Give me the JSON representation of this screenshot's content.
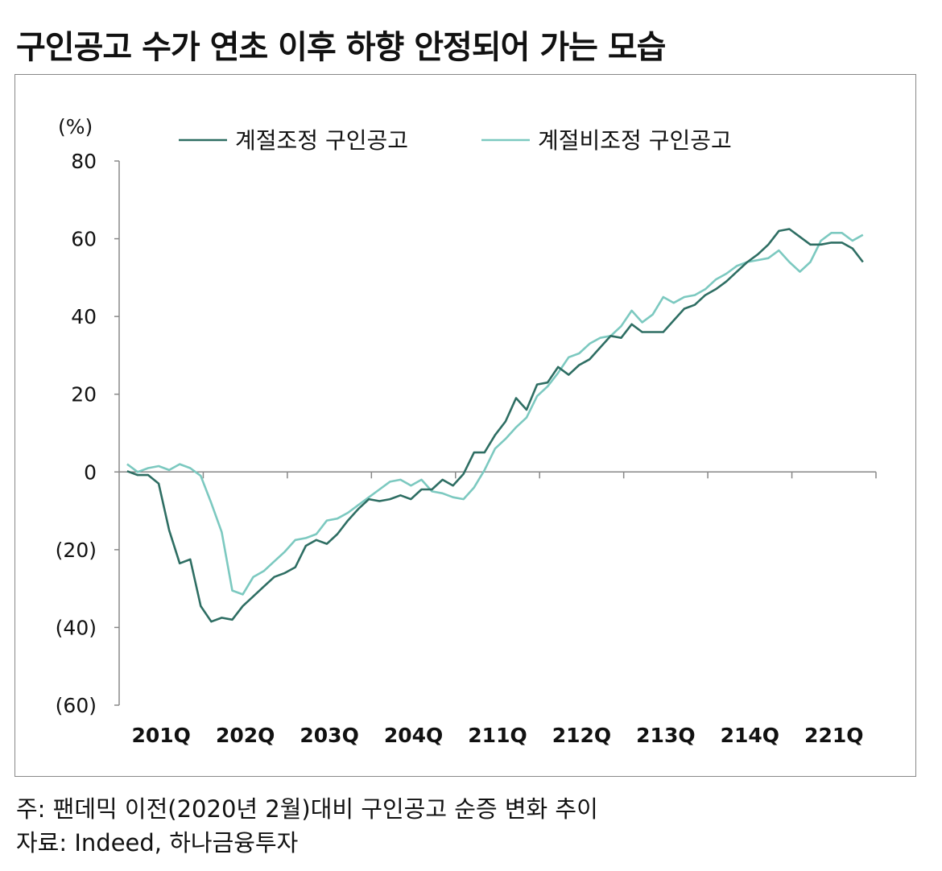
{
  "title": "구인공고 수가 연초 이후 하향 안정되어 가는 모습",
  "notes": {
    "note": "주: 팬데믹 이전(2020년 2월)대비 구인공고 순증 변화 추이",
    "source": "자료: Indeed, 하나금융투자"
  },
  "chart_data": {
    "type": "line",
    "unit_label": "(%)",
    "ylim": [
      -60,
      80
    ],
    "yticks": [
      -60,
      -40,
      -20,
      0,
      20,
      40,
      60,
      80
    ],
    "ytick_labels": [
      "(60)",
      "(40)",
      "(20)",
      "0",
      "20",
      "40",
      "60",
      "80"
    ],
    "x_range": [
      0,
      18
    ],
    "xticks": [
      {
        "x": 1,
        "label": "201Q"
      },
      {
        "x": 3,
        "label": "202Q"
      },
      {
        "x": 5,
        "label": "203Q"
      },
      {
        "x": 7,
        "label": "204Q"
      },
      {
        "x": 9,
        "label": "211Q"
      },
      {
        "x": 11,
        "label": "212Q"
      },
      {
        "x": 13,
        "label": "213Q"
      },
      {
        "x": 15,
        "label": "214Q"
      },
      {
        "x": 17,
        "label": "221Q"
      }
    ],
    "legend_position": "top",
    "series": [
      {
        "name": "계절조정 구인공고",
        "color": "#2e6e63",
        "points": [
          [
            0.19,
            0.2
          ],
          [
            0.44,
            -0.8
          ],
          [
            0.69,
            -0.8
          ],
          [
            0.94,
            -3
          ],
          [
            1.19,
            -15
          ],
          [
            1.44,
            -23.5
          ],
          [
            1.69,
            -22.5
          ],
          [
            1.94,
            -34.5
          ],
          [
            2.19,
            -38.5
          ],
          [
            2.44,
            -37.5
          ],
          [
            2.69,
            -38
          ],
          [
            2.94,
            -34.5
          ],
          [
            3.19,
            -32
          ],
          [
            3.44,
            -29.5
          ],
          [
            3.69,
            -27
          ],
          [
            3.94,
            -26
          ],
          [
            4.19,
            -24.5
          ],
          [
            4.44,
            -19
          ],
          [
            4.69,
            -17.5
          ],
          [
            4.94,
            -18.5
          ],
          [
            5.19,
            -16
          ],
          [
            5.44,
            -12.5
          ],
          [
            5.69,
            -9.5
          ],
          [
            5.94,
            -7
          ],
          [
            6.19,
            -7.5
          ],
          [
            6.44,
            -7
          ],
          [
            6.69,
            -6
          ],
          [
            6.94,
            -7
          ],
          [
            7.19,
            -4.5
          ],
          [
            7.44,
            -4.5
          ],
          [
            7.69,
            -2
          ],
          [
            7.94,
            -3.5
          ],
          [
            8.19,
            -0.5
          ],
          [
            8.44,
            5
          ],
          [
            8.69,
            5
          ],
          [
            8.94,
            9.5
          ],
          [
            9.19,
            13
          ],
          [
            9.44,
            19
          ],
          [
            9.69,
            16
          ],
          [
            9.94,
            22.5
          ],
          [
            10.19,
            23
          ],
          [
            10.44,
            27
          ],
          [
            10.69,
            25
          ],
          [
            10.94,
            27.5
          ],
          [
            11.19,
            29
          ],
          [
            11.44,
            32
          ],
          [
            11.69,
            35
          ],
          [
            11.94,
            34.5
          ],
          [
            12.19,
            38
          ],
          [
            12.44,
            36
          ],
          [
            12.69,
            36
          ],
          [
            12.94,
            36
          ],
          [
            13.19,
            39
          ],
          [
            13.44,
            42
          ],
          [
            13.69,
            43
          ],
          [
            13.94,
            45.5
          ],
          [
            14.19,
            47
          ],
          [
            14.44,
            49
          ],
          [
            14.69,
            51.5
          ],
          [
            14.94,
            54
          ],
          [
            15.19,
            56
          ],
          [
            15.44,
            58.5
          ],
          [
            15.69,
            62
          ],
          [
            15.94,
            62.5
          ],
          [
            16.19,
            60.5
          ],
          [
            16.44,
            58.5
          ],
          [
            16.69,
            58.5
          ],
          [
            16.94,
            59
          ],
          [
            17.19,
            59
          ],
          [
            17.44,
            57.5
          ],
          [
            17.69,
            54
          ]
        ]
      },
      {
        "name": "계절비조정 구인공고",
        "color": "#7cc9c0",
        "points": [
          [
            0.19,
            2
          ],
          [
            0.44,
            0
          ],
          [
            0.69,
            1
          ],
          [
            0.94,
            1.5
          ],
          [
            1.19,
            0.5
          ],
          [
            1.44,
            2
          ],
          [
            1.69,
            1
          ],
          [
            1.94,
            -1
          ],
          [
            2.19,
            -8
          ],
          [
            2.44,
            -15.5
          ],
          [
            2.69,
            -30.5
          ],
          [
            2.94,
            -31.5
          ],
          [
            3.19,
            -27
          ],
          [
            3.44,
            -25.5
          ],
          [
            3.69,
            -23
          ],
          [
            3.94,
            -20.5
          ],
          [
            4.19,
            -17.5
          ],
          [
            4.44,
            -17
          ],
          [
            4.69,
            -16
          ],
          [
            4.94,
            -12.5
          ],
          [
            5.19,
            -12
          ],
          [
            5.44,
            -10.5
          ],
          [
            5.69,
            -8.5
          ],
          [
            5.94,
            -6.5
          ],
          [
            6.19,
            -4.5
          ],
          [
            6.44,
            -2.5
          ],
          [
            6.69,
            -2
          ],
          [
            6.94,
            -3.5
          ],
          [
            7.19,
            -2
          ],
          [
            7.44,
            -5
          ],
          [
            7.69,
            -5.5
          ],
          [
            7.94,
            -6.5
          ],
          [
            8.19,
            -7
          ],
          [
            8.44,
            -4
          ],
          [
            8.69,
            0.5
          ],
          [
            8.94,
            6
          ],
          [
            9.19,
            8.5
          ],
          [
            9.44,
            11.5
          ],
          [
            9.69,
            14
          ],
          [
            9.94,
            19.5
          ],
          [
            10.19,
            22
          ],
          [
            10.44,
            25.5
          ],
          [
            10.69,
            29.5
          ],
          [
            10.94,
            30.5
          ],
          [
            11.19,
            33
          ],
          [
            11.44,
            34.5
          ],
          [
            11.69,
            35
          ],
          [
            11.94,
            37.5
          ],
          [
            12.19,
            41.5
          ],
          [
            12.44,
            38.5
          ],
          [
            12.69,
            40.5
          ],
          [
            12.94,
            45
          ],
          [
            13.19,
            43.5
          ],
          [
            13.44,
            45
          ],
          [
            13.69,
            45.5
          ],
          [
            13.94,
            47
          ],
          [
            14.19,
            49.5
          ],
          [
            14.44,
            51
          ],
          [
            14.69,
            53
          ],
          [
            14.94,
            54
          ],
          [
            15.19,
            54.5
          ],
          [
            15.44,
            55
          ],
          [
            15.69,
            57
          ],
          [
            15.94,
            54
          ],
          [
            16.19,
            51.5
          ],
          [
            16.44,
            54
          ],
          [
            16.69,
            59.5
          ],
          [
            16.94,
            61.5
          ],
          [
            17.19,
            61.5
          ],
          [
            17.44,
            59.5
          ],
          [
            17.69,
            61
          ]
        ]
      }
    ]
  }
}
